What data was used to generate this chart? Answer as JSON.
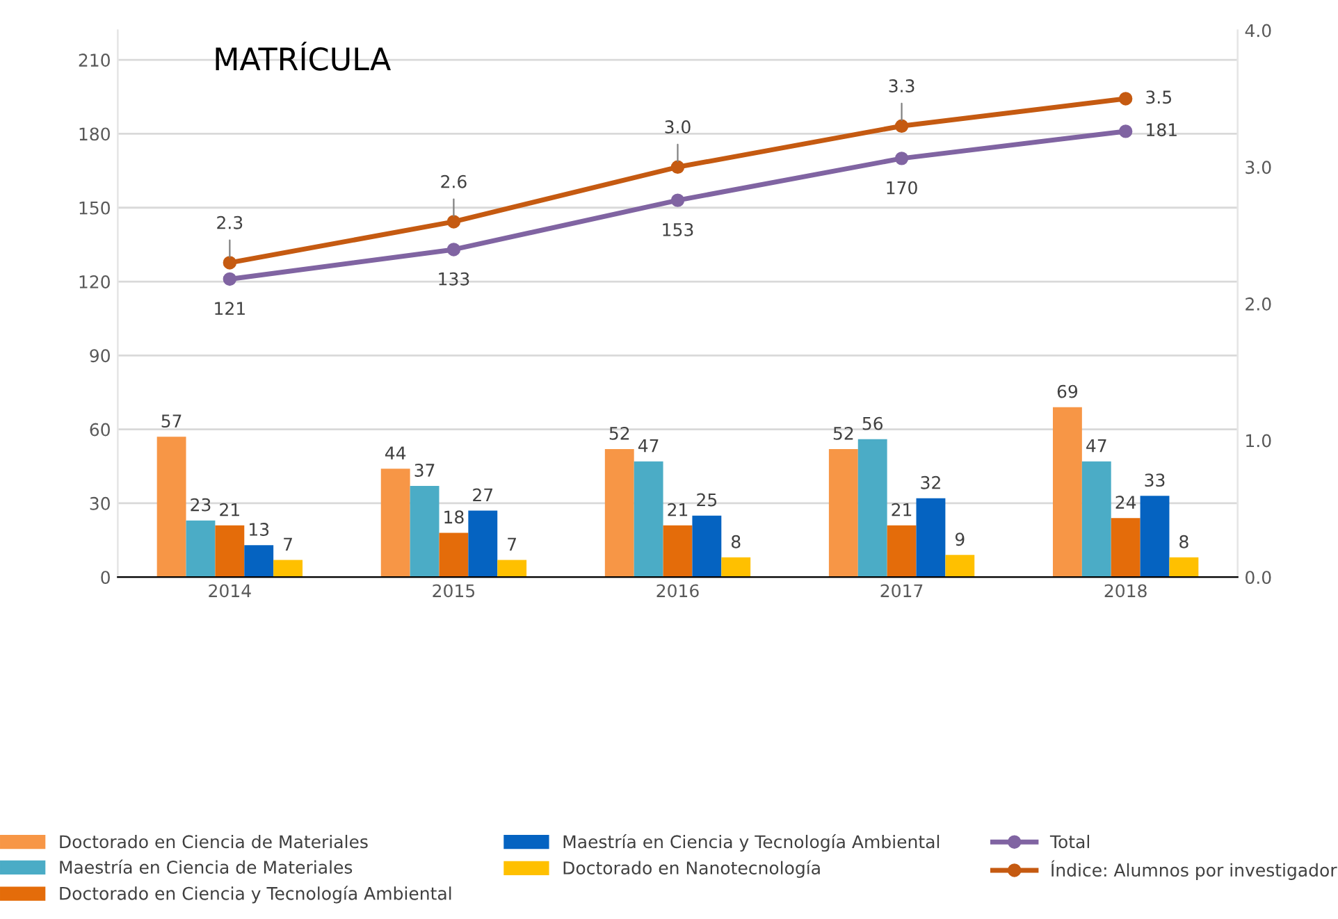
{
  "chart_data": {
    "type": "bar",
    "title": "MATRÍCULA",
    "categories": [
      "2014",
      "2015",
      "2016",
      "2017",
      "2018"
    ],
    "series": [
      {
        "name": "Doctorado en Ciencia de Materiales",
        "color": "#f79646",
        "values": [
          57,
          44,
          52,
          52,
          69
        ]
      },
      {
        "name": "Maestría en Ciencia de Materiales",
        "color": "#4bacc6",
        "values": [
          23,
          37,
          47,
          56,
          47
        ]
      },
      {
        "name": "Doctorado en Ciencia y Tecnología Ambiental",
        "color": "#e46c0a",
        "values": [
          21,
          18,
          21,
          21,
          24
        ]
      },
      {
        "name": "Maestría en Ciencia y Tecnología Ambiental",
        "color": "#0563c1",
        "values": [
          13,
          27,
          25,
          32,
          33
        ]
      },
      {
        "name": "Doctorado en Nanotecnología",
        "color": "#ffc000",
        "values": [
          7,
          7,
          8,
          9,
          8
        ]
      },
      {
        "name": "Total",
        "type": "line",
        "color": "#8064a2",
        "values": [
          121,
          133,
          153,
          170,
          181
        ]
      },
      {
        "name": "Índice: Alumnos por investigador",
        "type": "line",
        "axis": "y2",
        "color": "#c55a11",
        "values": [
          2.3,
          2.6,
          3.0,
          3.3,
          3.5
        ],
        "value_labels": [
          "2.3",
          "2.6",
          "3.0",
          "3.3",
          "3.5"
        ]
      }
    ],
    "ylim": [
      0,
      222
    ],
    "yticks": [
      0,
      30,
      60,
      90,
      120,
      150,
      180,
      210
    ],
    "y2lim": [
      0,
      4
    ],
    "y2ticks": [
      {
        "value": 0,
        "label": "0.0"
      },
      {
        "value": 1,
        "label": "1.0"
      },
      {
        "value": 2,
        "label": "2.0"
      },
      {
        "value": 3,
        "label": "3.0"
      },
      {
        "value": 4,
        "label": "4.0"
      }
    ],
    "data_labels": true,
    "grid": "y",
    "legend": "bottom",
    "marker": "circle"
  }
}
